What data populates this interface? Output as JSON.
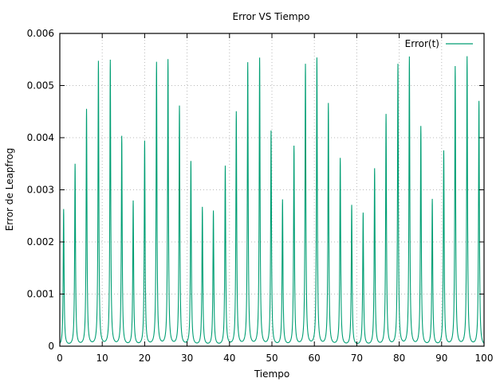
{
  "chart_data": {
    "type": "line",
    "title": "Error VS Tiempo",
    "xlabel": "Tiempo",
    "ylabel": "Error de Leapfrog",
    "xlim": [
      0,
      100
    ],
    "ylim": [
      0,
      0.006
    ],
    "x_ticks": [
      "0",
      "10",
      "20",
      "30",
      "40",
      "50",
      "60",
      "70",
      "80",
      "90",
      "100"
    ],
    "y_ticks": [
      "0",
      "0.001",
      "0.002",
      "0.003",
      "0.004",
      "0.005",
      "0.006"
    ],
    "grid": true,
    "legend_position": "top-right",
    "series": [
      {
        "name": "Error(t)",
        "color": "#009e73",
        "peaks": [
          {
            "x": 0.9,
            "y": 0.00262
          },
          {
            "x": 3.6,
            "y": 0.00348
          },
          {
            "x": 6.3,
            "y": 0.00453
          },
          {
            "x": 9.1,
            "y": 0.00545
          },
          {
            "x": 11.9,
            "y": 0.00547
          },
          {
            "x": 14.6,
            "y": 0.00401
          },
          {
            "x": 17.3,
            "y": 0.00277
          },
          {
            "x": 20.0,
            "y": 0.00392
          },
          {
            "x": 22.8,
            "y": 0.00543
          },
          {
            "x": 25.5,
            "y": 0.00548
          },
          {
            "x": 28.2,
            "y": 0.00459
          },
          {
            "x": 30.9,
            "y": 0.00353
          },
          {
            "x": 33.6,
            "y": 0.00265
          },
          {
            "x": 36.2,
            "y": 0.00258
          },
          {
            "x": 39.0,
            "y": 0.00344
          },
          {
            "x": 41.6,
            "y": 0.00448
          },
          {
            "x": 44.3,
            "y": 0.00542
          },
          {
            "x": 47.1,
            "y": 0.00551
          },
          {
            "x": 49.8,
            "y": 0.00411
          },
          {
            "x": 52.5,
            "y": 0.00279
          },
          {
            "x": 55.2,
            "y": 0.00382
          },
          {
            "x": 57.9,
            "y": 0.00539
          },
          {
            "x": 60.6,
            "y": 0.00551
          },
          {
            "x": 63.3,
            "y": 0.00464
          },
          {
            "x": 66.1,
            "y": 0.00359
          },
          {
            "x": 68.8,
            "y": 0.00269
          },
          {
            "x": 71.5,
            "y": 0.00254
          },
          {
            "x": 74.2,
            "y": 0.00339
          },
          {
            "x": 76.9,
            "y": 0.00443
          },
          {
            "x": 79.7,
            "y": 0.00539
          },
          {
            "x": 82.4,
            "y": 0.00553
          },
          {
            "x": 85.1,
            "y": 0.0042
          },
          {
            "x": 87.8,
            "y": 0.0028
          },
          {
            "x": 90.5,
            "y": 0.00373
          },
          {
            "x": 93.2,
            "y": 0.00535
          },
          {
            "x": 96.0,
            "y": 0.00554
          },
          {
            "x": 98.8,
            "y": 0.00469
          }
        ]
      }
    ]
  }
}
